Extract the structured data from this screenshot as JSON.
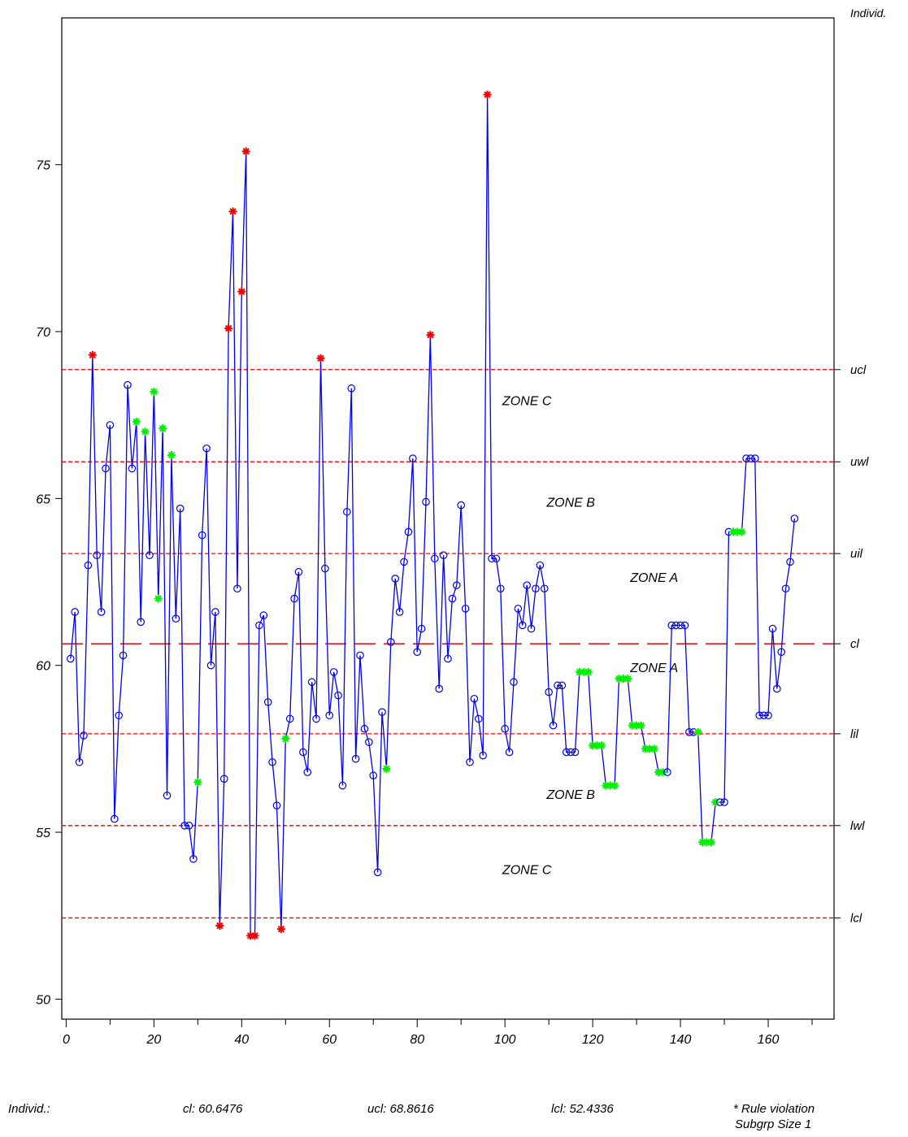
{
  "chart_data": {
    "type": "line",
    "title": "",
    "corner_label": "Individ.",
    "xlabel": "",
    "ylabel": "",
    "xlim": [
      -1,
      175
    ],
    "ylim": [
      49.4,
      79.4
    ],
    "x_ticks": [
      0,
      20,
      40,
      60,
      80,
      100,
      120,
      140,
      160
    ],
    "y_ticks": [
      50,
      55,
      60,
      65,
      70,
      75
    ],
    "grid": false,
    "legend": "none",
    "colors": {
      "line": "#0000ee",
      "marker": "#0000ee",
      "violation_red": "#ee0000",
      "violation_green": "#00ee00",
      "limit_line": "#ee0000"
    },
    "series": [
      {
        "values": [
          60.2,
          61.6,
          57.1,
          57.9,
          63.0,
          69.3,
          63.3,
          61.6,
          65.9,
          67.2,
          55.4,
          58.5,
          60.3,
          68.4,
          65.9,
          67.3,
          61.3,
          67.0,
          63.3,
          68.2,
          62.0,
          67.1,
          56.1,
          66.3,
          61.4,
          64.7,
          55.2,
          55.2,
          54.2,
          56.5,
          63.9,
          66.5,
          60.0,
          61.6,
          52.2,
          56.6,
          70.1,
          73.6,
          62.3,
          71.2,
          75.4,
          51.9,
          51.9,
          61.2,
          61.5,
          58.9,
          57.1,
          55.8,
          52.1,
          57.8,
          58.4,
          62.0,
          62.8,
          57.4,
          56.8,
          59.5,
          58.4,
          69.2,
          62.9,
          58.5,
          59.8,
          59.1,
          56.4,
          64.6,
          68.3,
          57.2,
          60.3,
          58.1,
          57.7,
          56.7,
          53.8,
          58.6,
          56.9,
          60.7,
          62.6,
          61.6,
          63.1,
          64.0,
          66.2,
          60.4,
          61.1,
          64.9,
          69.9,
          63.2,
          59.3,
          63.3,
          60.2,
          62.0,
          62.4,
          64.8,
          61.7,
          57.1,
          59.0,
          58.4,
          57.3,
          77.1,
          63.2,
          63.2,
          62.3,
          58.1,
          57.4,
          59.5,
          61.7,
          61.2,
          62.4,
          61.1,
          62.3,
          63.0,
          62.3,
          59.2,
          58.2,
          59.4,
          59.4,
          57.4,
          57.4,
          57.4,
          59.8,
          59.8,
          59.8,
          57.6,
          57.6,
          57.6,
          56.4,
          56.4,
          56.4,
          59.6,
          59.6,
          59.6,
          58.2,
          58.2,
          58.2,
          57.5,
          57.5,
          57.5,
          56.8,
          56.8,
          56.8,
          61.2,
          61.2,
          61.2,
          61.2,
          58.0,
          58.0,
          58.0,
          54.7,
          54.7,
          54.7,
          55.9,
          55.9,
          55.9,
          64.0,
          64.0,
          64.0,
          64.0,
          66.2,
          66.2,
          66.2,
          58.5,
          58.5,
          58.5,
          61.1,
          59.3,
          60.4,
          62.3,
          63.1,
          64.4
        ],
        "red_violations": [
          6,
          35,
          37,
          38,
          40,
          41,
          42,
          43,
          49,
          58,
          83,
          96
        ],
        "green_violations": [
          16,
          18,
          20,
          21,
          22,
          24,
          30,
          50,
          73,
          117,
          118,
          119,
          120,
          121,
          122,
          123,
          124,
          125,
          126,
          127,
          128,
          129,
          130,
          131,
          132,
          133,
          134,
          135,
          136,
          144,
          145,
          146,
          147,
          148,
          152,
          153,
          154
        ]
      }
    ],
    "limit_lines": [
      {
        "value": 68.8616,
        "label": "ucl",
        "style": "short-dash"
      },
      {
        "value": 66.1,
        "label": "uwl",
        "style": "short-dash"
      },
      {
        "value": 63.35,
        "label": "uil",
        "style": "short-dash"
      },
      {
        "value": 60.6476,
        "label": "cl",
        "style": "long-dash"
      },
      {
        "value": 57.95,
        "label": "lil",
        "style": "short-dash"
      },
      {
        "value": 55.2,
        "label": "lwl",
        "style": "short-dash"
      },
      {
        "value": 52.4336,
        "label": "lcl",
        "style": "short-dash"
      }
    ],
    "zone_labels": [
      {
        "text": "ZONE C",
        "x": 105,
        "y": 67.8
      },
      {
        "text": "ZONE B",
        "x": 115,
        "y": 64.75
      },
      {
        "text": "ZONE A",
        "x": 134,
        "y": 62.5
      },
      {
        "text": "ZONE A",
        "x": 134,
        "y": 59.8
      },
      {
        "text": "ZONE B",
        "x": 115,
        "y": 56.0
      },
      {
        "text": "ZONE C",
        "x": 105,
        "y": 53.75
      }
    ]
  },
  "footer": {
    "label": "Individ.:",
    "cl_text": "cl:  60.6476",
    "ucl_text": "ucl:  68.8616",
    "lcl_text": "lcl:  52.4336",
    "rule_violation": "* Rule violation",
    "subgroup_size": "Subgrp Size 1"
  }
}
